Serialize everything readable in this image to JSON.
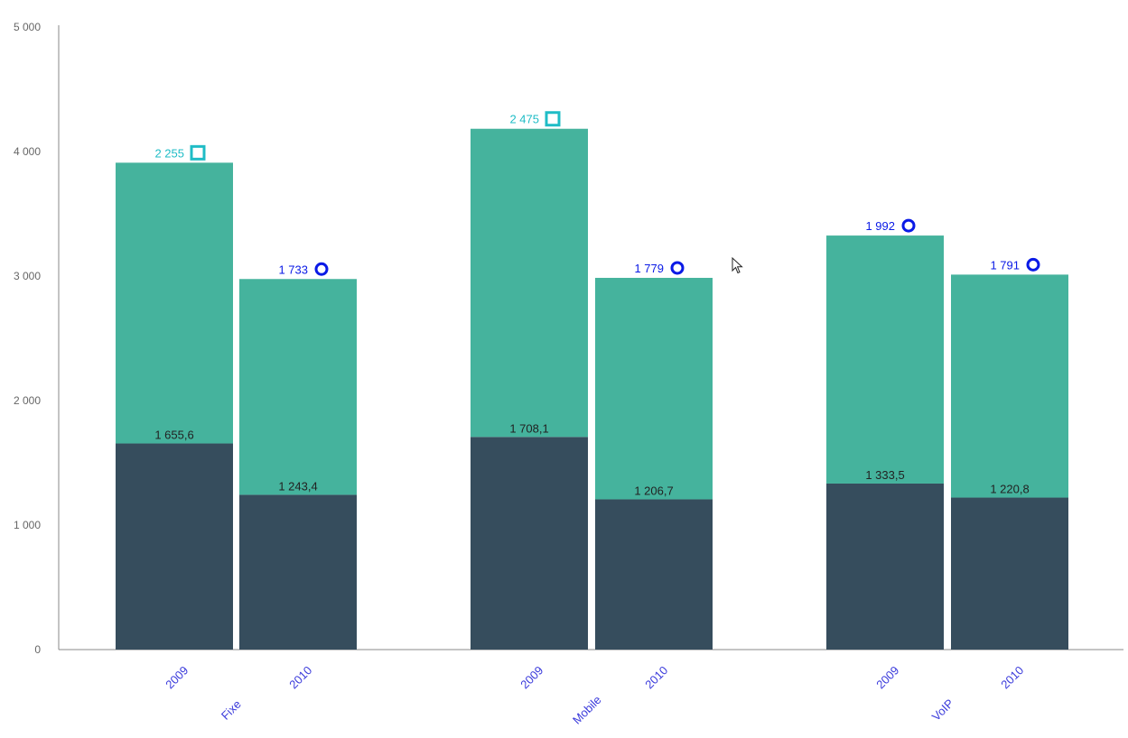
{
  "chart_data": {
    "type": "bar",
    "stacked": true,
    "y_ticks": [
      "0",
      "1 000",
      "2 000",
      "3 000",
      "4 000",
      "5 000"
    ],
    "ylim": [
      0,
      5000
    ],
    "grid": false,
    "legend": "none",
    "groups": [
      {
        "name": "Fixe",
        "bars": [
          {
            "label": "2009",
            "bottom": 1655.6,
            "top": 2255,
            "bottom_label": "1 655,6",
            "total_label": "2 255",
            "marker": "square"
          },
          {
            "label": "2010",
            "bottom": 1243.4,
            "top": 1733,
            "bottom_label": "1 243,4",
            "total_label": "1 733",
            "marker": "circle"
          }
        ]
      },
      {
        "name": "Mobile",
        "bars": [
          {
            "label": "2009",
            "bottom": 1708.1,
            "top": 2475,
            "bottom_label": "1 708,1",
            "total_label": "2 475",
            "marker": "square"
          },
          {
            "label": "2010",
            "bottom": 1206.7,
            "top": 1779,
            "bottom_label": "1 206,7",
            "total_label": "1 779",
            "marker": "circle"
          }
        ]
      },
      {
        "name": "VoIP",
        "bars": [
          {
            "label": "2009",
            "bottom": 1333.5,
            "top": 1992,
            "bottom_label": "1 333,5",
            "total_label": "1 992",
            "marker": "circle"
          },
          {
            "label": "2010",
            "bottom": 1220.8,
            "top": 1791,
            "bottom_label": "1 220,8",
            "total_label": "1 791",
            "marker": "circle"
          }
        ]
      }
    ],
    "colors": {
      "bottom": "#364d5d",
      "top": "#45b39d",
      "axis_label": "#3a3adb",
      "square_marker": "#1fbcc6",
      "circle_marker": "#0a1ae6"
    }
  }
}
